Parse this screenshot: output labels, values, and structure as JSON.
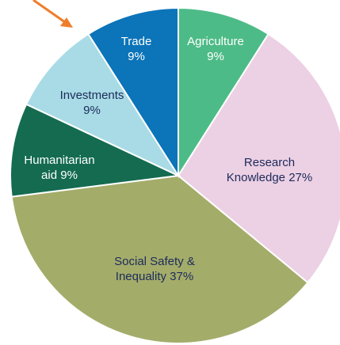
{
  "chart_data": {
    "type": "pie",
    "categories": [
      "Agriculture",
      "Research Knowledge",
      "Social Safety & Inequality",
      "Humanitarian aid",
      "Investments",
      "Trade"
    ],
    "values": [
      9,
      27,
      37,
      9,
      9,
      9
    ],
    "value_labels": [
      "9%",
      "27%",
      "37%",
      "9%",
      "9%",
      "9%"
    ],
    "colors": [
      "#4dbb87",
      "#ecd0e4",
      "#a4ac6a",
      "#146b50",
      "#a8dbe5",
      "#0c74b8"
    ]
  }
}
